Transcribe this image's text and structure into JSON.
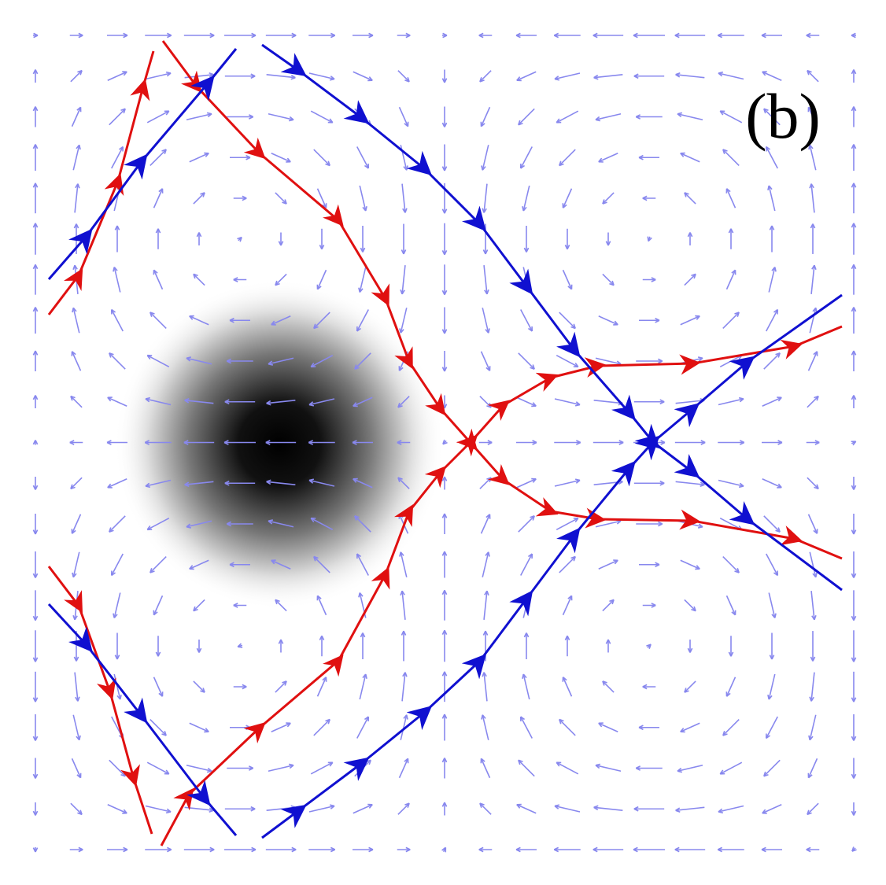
{
  "label": "(b)"
}
